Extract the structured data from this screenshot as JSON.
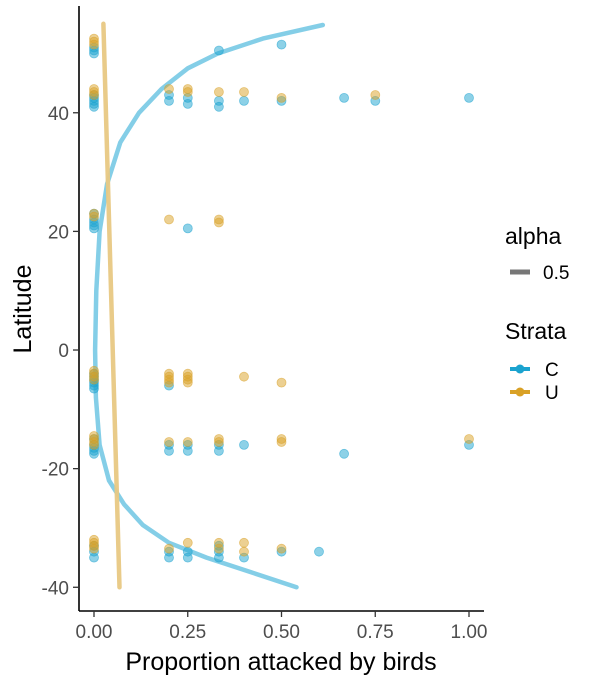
{
  "chart_data": {
    "type": "scatter",
    "xlabel": "Proportion attacked by birds",
    "ylabel": "Latitude",
    "xlim": [
      -0.04,
      1.04
    ],
    "ylim": [
      -44,
      58
    ],
    "x_ticks": [
      {
        "value": 0,
        "label": "0.00"
      },
      {
        "value": 0.25,
        "label": "0.25"
      },
      {
        "value": 0.5,
        "label": "0.50"
      },
      {
        "value": 0.75,
        "label": "0.75"
      },
      {
        "value": 1,
        "label": "1.00"
      }
    ],
    "y_ticks": [
      {
        "value": 40,
        "label": "40"
      },
      {
        "value": 20,
        "label": "20"
      },
      {
        "value": 0,
        "label": "0"
      },
      {
        "value": -20,
        "label": "-20"
      },
      {
        "value": -40,
        "label": "-40"
      }
    ],
    "grid": false,
    "legend": {
      "placement": "right",
      "groups": [
        {
          "title": "alpha",
          "entries": [
            {
              "label": "0.5",
              "color": "#777777"
            }
          ]
        },
        {
          "title": "Strata",
          "entries": [
            {
              "label": "C",
              "color": "#1ba3cf"
            },
            {
              "label": "U",
              "color": "#d9a126"
            }
          ]
        }
      ]
    },
    "series": [
      {
        "name": "C",
        "color": "#1ba3cf",
        "points": [
          [
            0,
            51
          ],
          [
            0,
            50.5
          ],
          [
            0,
            50
          ],
          [
            0,
            43
          ],
          [
            0,
            42.5
          ],
          [
            0,
            42
          ],
          [
            0,
            41.5
          ],
          [
            0,
            41
          ],
          [
            0,
            23
          ],
          [
            0,
            22
          ],
          [
            0,
            21.5
          ],
          [
            0,
            21
          ],
          [
            0,
            20.5
          ],
          [
            0,
            -4
          ],
          [
            0,
            -4.5
          ],
          [
            0,
            -5
          ],
          [
            0,
            -5.5
          ],
          [
            0,
            -6
          ],
          [
            0,
            -6.5
          ],
          [
            0,
            -15
          ],
          [
            0,
            -16
          ],
          [
            0,
            -16.5
          ],
          [
            0,
            -17
          ],
          [
            0,
            -17.5
          ],
          [
            0,
            -33
          ],
          [
            0,
            -34
          ],
          [
            0,
            -35
          ],
          [
            0.2,
            43
          ],
          [
            0.2,
            42
          ],
          [
            0.2,
            -6
          ],
          [
            0.2,
            -16
          ],
          [
            0.2,
            -17
          ],
          [
            0.2,
            -34
          ],
          [
            0.2,
            -35
          ],
          [
            0.25,
            42.5
          ],
          [
            0.25,
            41.5
          ],
          [
            0.25,
            20.5
          ],
          [
            0.25,
            -16
          ],
          [
            0.25,
            -17
          ],
          [
            0.25,
            -34
          ],
          [
            0.25,
            -35
          ],
          [
            0.333,
            50.5
          ],
          [
            0.333,
            42
          ],
          [
            0.333,
            41
          ],
          [
            0.333,
            -16
          ],
          [
            0.333,
            -17
          ],
          [
            0.333,
            -33
          ],
          [
            0.333,
            -34
          ],
          [
            0.333,
            -35
          ],
          [
            0.4,
            42
          ],
          [
            0.4,
            -16
          ],
          [
            0.4,
            -35
          ],
          [
            0.5,
            51.5
          ],
          [
            0.5,
            42
          ],
          [
            0.5,
            -34
          ],
          [
            0.6,
            -34
          ],
          [
            0.667,
            42.5
          ],
          [
            0.667,
            -17.5
          ],
          [
            0.75,
            42
          ],
          [
            1,
            42.5
          ],
          [
            1,
            -16
          ]
        ]
      },
      {
        "name": "U",
        "color": "#d9a126",
        "points": [
          [
            0,
            52.5
          ],
          [
            0,
            52
          ],
          [
            0,
            51.5
          ],
          [
            0,
            44
          ],
          [
            0,
            43.5
          ],
          [
            0,
            43
          ],
          [
            0,
            23
          ],
          [
            0,
            22.5
          ],
          [
            0,
            -3.5
          ],
          [
            0,
            -4
          ],
          [
            0,
            -4.5
          ],
          [
            0,
            -5
          ],
          [
            0,
            -14.5
          ],
          [
            0,
            -15
          ],
          [
            0,
            -15.5
          ],
          [
            0,
            -16
          ],
          [
            0,
            -32
          ],
          [
            0,
            -32.5
          ],
          [
            0,
            -33
          ],
          [
            0,
            -33.5
          ],
          [
            0.2,
            44
          ],
          [
            0.2,
            22
          ],
          [
            0.2,
            -4
          ],
          [
            0.2,
            -4.5
          ],
          [
            0.2,
            -5
          ],
          [
            0.2,
            -5.5
          ],
          [
            0.2,
            -15.5
          ],
          [
            0.2,
            -33.5
          ],
          [
            0.25,
            44
          ],
          [
            0.25,
            43.5
          ],
          [
            0.25,
            -4
          ],
          [
            0.25,
            -4.5
          ],
          [
            0.25,
            -5
          ],
          [
            0.25,
            -5.5
          ],
          [
            0.25,
            -15.5
          ],
          [
            0.25,
            -32.5
          ],
          [
            0.333,
            43.5
          ],
          [
            0.333,
            22
          ],
          [
            0.333,
            21.5
          ],
          [
            0.333,
            -15
          ],
          [
            0.333,
            -15.5
          ],
          [
            0.333,
            -32.5
          ],
          [
            0.333,
            -33.5
          ],
          [
            0.4,
            43.5
          ],
          [
            0.4,
            -4.5
          ],
          [
            0.4,
            -32.5
          ],
          [
            0.4,
            -34
          ],
          [
            0.5,
            42.5
          ],
          [
            0.5,
            -5.5
          ],
          [
            0.5,
            -15
          ],
          [
            0.5,
            -15.5
          ],
          [
            0.5,
            -33.5
          ],
          [
            0.75,
            43
          ],
          [
            1,
            -15
          ]
        ]
      }
    ],
    "fit_lines": [
      {
        "name": "C",
        "color": "#7dcbe6",
        "points": [
          [
            0.61,
            54.8
          ],
          [
            0.45,
            52.5
          ],
          [
            0.33,
            50
          ],
          [
            0.25,
            47.5
          ],
          [
            0.18,
            44
          ],
          [
            0.12,
            40
          ],
          [
            0.07,
            35
          ],
          [
            0.035,
            28
          ],
          [
            0.015,
            20
          ],
          [
            0.006,
            10
          ],
          [
            0.003,
            0
          ],
          [
            0.005,
            -8
          ],
          [
            0.015,
            -16
          ],
          [
            0.04,
            -22
          ],
          [
            0.08,
            -26
          ],
          [
            0.13,
            -29.5
          ],
          [
            0.2,
            -32.5
          ],
          [
            0.3,
            -35
          ],
          [
            0.42,
            -37.5
          ],
          [
            0.54,
            -40
          ]
        ]
      },
      {
        "name": "U",
        "color": "#e8c883",
        "points": [
          [
            0.025,
            55
          ],
          [
            0.068,
            -40
          ]
        ]
      }
    ]
  }
}
